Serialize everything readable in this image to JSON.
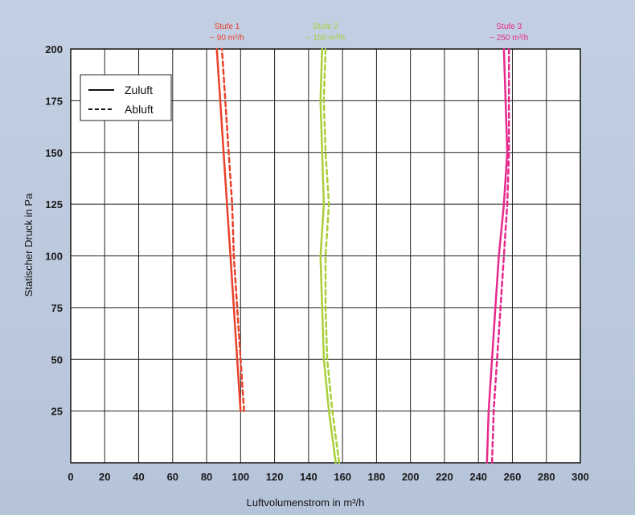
{
  "chart_data": {
    "type": "line",
    "xlabel": "Luftvolumenstrom in m³/h",
    "ylabel": "Statischer Druck in Pa",
    "xlim": [
      0,
      300
    ],
    "ylim": [
      0,
      200
    ],
    "x_ticks": [
      "0",
      "20",
      "40",
      "60",
      "80",
      "100",
      "120",
      "140",
      "160",
      "180",
      "200",
      "220",
      "240",
      "260",
      "280",
      "300"
    ],
    "y_ticks": [
      "25",
      "50",
      "75",
      "100",
      "125",
      "150",
      "175",
      "200"
    ],
    "grid": true,
    "legend": {
      "placement": "top-left",
      "entries": [
        {
          "label": "Zuluft",
          "style": "solid"
        },
        {
          "label": "Abluft",
          "style": "dashed"
        }
      ]
    },
    "stages": [
      {
        "name": "Stufe 1",
        "flow": "~ 90 m³/h",
        "color": "#e8412c"
      },
      {
        "name": "Stufe 2",
        "flow": "~ 150 m³/h",
        "color": "#a9cf3a"
      },
      {
        "name": "Stufe 3",
        "flow": "~ 250 m³/h",
        "color": "#e6298c"
      }
    ],
    "series": [
      {
        "name": "Stufe 1 Zuluft",
        "color": "#e8412c",
        "style": "solid",
        "points": [
          [
            100,
            25
          ],
          [
            98,
            50
          ],
          [
            96,
            75
          ],
          [
            94,
            100
          ],
          [
            92,
            125
          ],
          [
            90,
            150
          ],
          [
            88,
            175
          ],
          [
            86,
            200
          ]
        ]
      },
      {
        "name": "Stufe 1 Abluft",
        "color": "#e8412c",
        "style": "dashed",
        "points": [
          [
            102,
            25
          ],
          [
            100,
            50
          ],
          [
            98,
            75
          ],
          [
            96,
            100
          ],
          [
            95,
            125
          ],
          [
            93,
            150
          ],
          [
            91,
            175
          ],
          [
            89,
            200
          ]
        ]
      },
      {
        "name": "Stufe 2 Zuluft",
        "color": "#a9cf3a",
        "style": "solid",
        "points": [
          [
            156,
            0
          ],
          [
            152,
            25
          ],
          [
            149,
            50
          ],
          [
            148,
            75
          ],
          [
            147,
            100
          ],
          [
            149,
            125
          ],
          [
            148,
            150
          ],
          [
            147,
            175
          ],
          [
            148,
            200
          ]
        ]
      },
      {
        "name": "Stufe 2 Abluft",
        "color": "#a9cf3a",
        "style": "dashed",
        "points": [
          [
            158,
            0
          ],
          [
            154,
            25
          ],
          [
            151,
            50
          ],
          [
            150,
            75
          ],
          [
            150,
            100
          ],
          [
            152,
            125
          ],
          [
            150,
            150
          ],
          [
            149,
            175
          ],
          [
            150,
            200
          ]
        ]
      },
      {
        "name": "Stufe 3 Zuluft",
        "color": "#e6298c",
        "style": "solid",
        "points": [
          [
            245,
            0
          ],
          [
            246,
            25
          ],
          [
            248,
            50
          ],
          [
            250,
            75
          ],
          [
            252,
            100
          ],
          [
            255,
            125
          ],
          [
            257,
            150
          ],
          [
            256,
            175
          ],
          [
            255,
            200
          ]
        ]
      },
      {
        "name": "Stufe 3 Abluft",
        "color": "#e6298c",
        "style": "dashed",
        "points": [
          [
            248,
            0
          ],
          [
            249,
            25
          ],
          [
            251,
            50
          ],
          [
            253,
            75
          ],
          [
            255,
            100
          ],
          [
            257,
            125
          ],
          [
            258,
            150
          ],
          [
            258,
            175
          ],
          [
            258,
            200
          ]
        ]
      }
    ]
  }
}
